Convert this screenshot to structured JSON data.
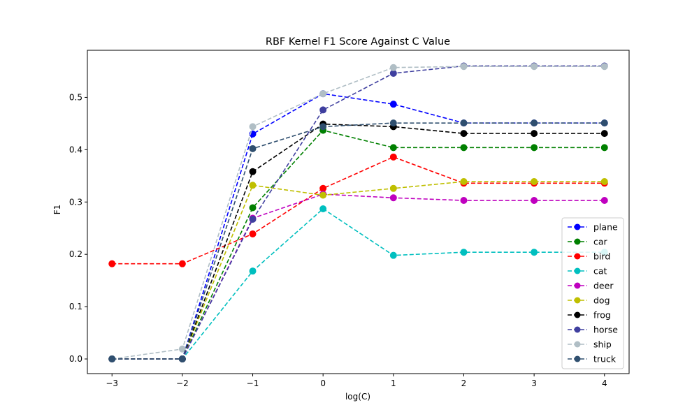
{
  "chart_data": {
    "type": "line",
    "title": "RBF Kernel F1 Score Against C Value",
    "xlabel": "log(C)",
    "ylabel": "F1",
    "x": [
      -3,
      -2,
      -1,
      0,
      1,
      2,
      3,
      4
    ],
    "xticks": [
      "−3",
      "−2",
      "−1",
      "0",
      "1",
      "2",
      "3",
      "4"
    ],
    "yticks": [
      0.0,
      0.1,
      0.2,
      0.3,
      0.4,
      0.5
    ],
    "ytick_labels": [
      "0.0",
      "0.1",
      "0.2",
      "0.3",
      "0.4",
      "0.5"
    ],
    "xlim": [
      -3.35,
      4.35
    ],
    "ylim": [
      -0.028,
      0.59
    ],
    "grid": false,
    "legend_position": "lower-right",
    "line_style": "dashed",
    "marker": "circle",
    "series": [
      {
        "name": "plane",
        "color": "#0000ff",
        "values": [
          0.0,
          0.0,
          0.43,
          0.507,
          0.487,
          0.451,
          0.451,
          0.451
        ]
      },
      {
        "name": "car",
        "color": "#008000",
        "values": [
          0.0,
          0.0,
          0.289,
          0.437,
          0.404,
          0.404,
          0.404,
          0.404
        ]
      },
      {
        "name": "bird",
        "color": "#ff0000",
        "values": [
          0.182,
          0.182,
          0.239,
          0.326,
          0.386,
          0.336,
          0.336,
          0.336
        ]
      },
      {
        "name": "cat",
        "color": "#00bfbf",
        "values": [
          0.0,
          0.0,
          0.168,
          0.287,
          0.198,
          0.204,
          0.204,
          0.204
        ]
      },
      {
        "name": "deer",
        "color": "#bf00bf",
        "values": [
          0.0,
          0.0,
          0.269,
          0.315,
          0.308,
          0.303,
          0.303,
          0.303
        ]
      },
      {
        "name": "dog",
        "color": "#bfbf00",
        "values": [
          0.0,
          0.0,
          0.332,
          0.313,
          0.326,
          0.339,
          0.339,
          0.339
        ]
      },
      {
        "name": "frog",
        "color": "#000000",
        "values": [
          0.0,
          0.0,
          0.358,
          0.449,
          0.444,
          0.431,
          0.431,
          0.431
        ]
      },
      {
        "name": "horse",
        "color": "#3f3f9f",
        "values": [
          0.0,
          0.0,
          0.267,
          0.476,
          0.546,
          0.56,
          0.56,
          0.56
        ]
      },
      {
        "name": "ship",
        "color": "#b0bec5",
        "values": [
          0.0,
          0.019,
          0.444,
          0.507,
          0.557,
          0.559,
          0.559,
          0.559
        ]
      },
      {
        "name": "truck",
        "color": "#2f4f6f",
        "values": [
          0.0,
          0.0,
          0.402,
          0.444,
          0.451,
          0.451,
          0.451,
          0.451
        ]
      }
    ]
  }
}
